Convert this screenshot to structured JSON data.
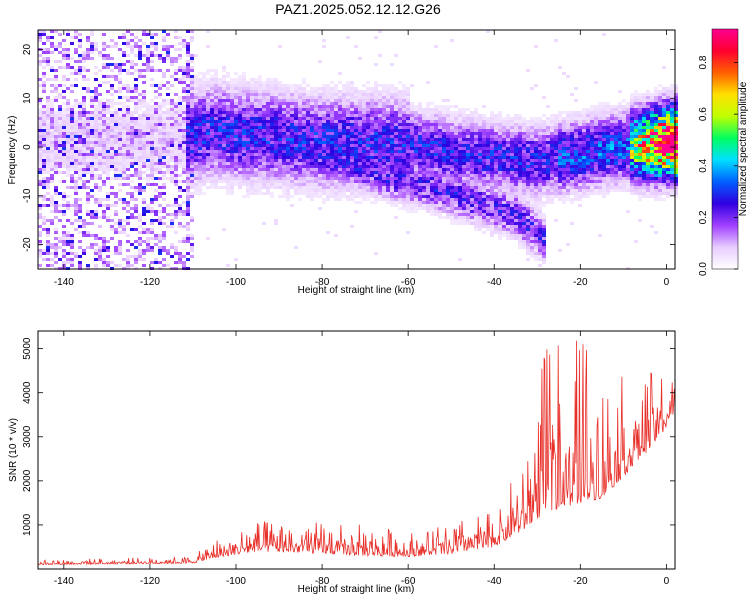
{
  "title": "PAZ1.2025.052.12.12.G26",
  "chart_data": [
    {
      "type": "heatmap",
      "title": "PAZ1.2025.052.12.12.G26",
      "xlabel": "Height of straight line (km)",
      "ylabel": "Frequency (Hz)",
      "xlim": [
        -146,
        2
      ],
      "ylim": [
        -25,
        24
      ],
      "xticks": [
        -140,
        -120,
        -100,
        -80,
        -60,
        -40,
        -20,
        0
      ],
      "yticks": [
        -20,
        -10,
        0,
        10,
        20
      ],
      "colorbar": {
        "label": "Normalized spectral amplitude",
        "range": [
          0,
          0.93
        ],
        "ticks": [
          0.0,
          0.2,
          0.4,
          0.6,
          0.8
        ],
        "colors": [
          "#ffffff",
          "#e8ccff",
          "#a040ff",
          "#3000e0",
          "#0060ff",
          "#00e0ff",
          "#00ff60",
          "#c0ff00",
          "#ffe000",
          "#ff6000",
          "#ff0030",
          "#ff0090"
        ]
      },
      "ridge": [
        {
          "x": -113,
          "y": 1.5
        },
        {
          "x": -105,
          "y": 3.5
        },
        {
          "x": -100,
          "y": 2.5
        },
        {
          "x": -90,
          "y": 2
        },
        {
          "x": -80,
          "y": 1
        },
        {
          "x": -70,
          "y": 1
        },
        {
          "x": -60,
          "y": 0.5
        },
        {
          "x": -50,
          "y": -1
        },
        {
          "x": -40,
          "y": -2
        },
        {
          "x": -30,
          "y": -3
        },
        {
          "x": -20,
          "y": -1.5
        },
        {
          "x": -10,
          "y": 0
        },
        {
          "x": 0,
          "y": 1
        }
      ],
      "branch": [
        {
          "x": -85,
          "y": -1
        },
        {
          "x": -75,
          "y": -3
        },
        {
          "x": -65,
          "y": -6
        },
        {
          "x": -55,
          "y": -8
        },
        {
          "x": -45,
          "y": -11
        },
        {
          "x": -35,
          "y": -14
        },
        {
          "x": -28,
          "y": -19
        }
      ]
    },
    {
      "type": "line",
      "xlabel": "Height of straight line (km)",
      "ylabel": "SNR (10 * v/v)",
      "xlim": [
        -146,
        2
      ],
      "ylim": [
        0,
        5400
      ],
      "xticks": [
        -140,
        -120,
        -100,
        -80,
        -60,
        -40,
        -20,
        0
      ],
      "yticks": [
        1000,
        2000,
        3000,
        4000,
        5000
      ],
      "color": "#e8302a",
      "envelope": [
        {
          "x": -146,
          "base": 100,
          "amp": 120
        },
        {
          "x": -110,
          "base": 130,
          "amp": 150
        },
        {
          "x": -105,
          "base": 250,
          "amp": 450
        },
        {
          "x": -95,
          "base": 400,
          "amp": 700
        },
        {
          "x": -80,
          "base": 350,
          "amp": 750
        },
        {
          "x": -70,
          "base": 300,
          "amp": 700
        },
        {
          "x": -60,
          "base": 280,
          "amp": 600
        },
        {
          "x": -50,
          "base": 350,
          "amp": 750
        },
        {
          "x": -40,
          "base": 500,
          "amp": 900
        },
        {
          "x": -33,
          "base": 900,
          "amp": 1600
        },
        {
          "x": -28,
          "base": 1300,
          "amp": 3700
        },
        {
          "x": -20,
          "base": 1500,
          "amp": 3700
        },
        {
          "x": -15,
          "base": 1600,
          "amp": 2800
        },
        {
          "x": -5,
          "base": 2600,
          "amp": 1800
        },
        {
          "x": 0,
          "base": 3200,
          "amp": 1500
        },
        {
          "x": 2,
          "base": 3600,
          "amp": 600
        }
      ]
    }
  ]
}
